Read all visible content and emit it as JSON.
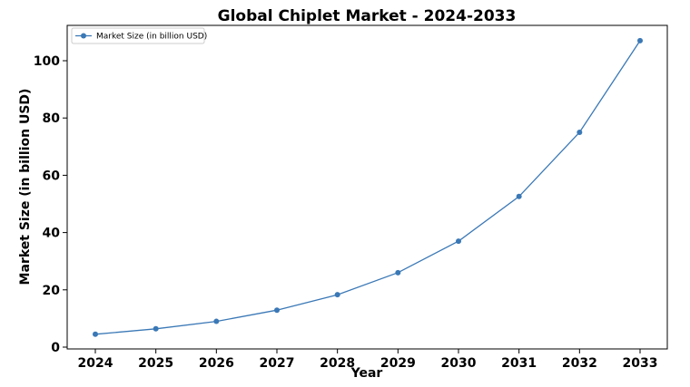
{
  "chart_data": {
    "type": "line",
    "title": "Global Chiplet Market - 2024-2033",
    "xlabel": "Year",
    "ylabel": "Market Size (in billion USD)",
    "x": [
      "2024",
      "2025",
      "2026",
      "2027",
      "2028",
      "2029",
      "2030",
      "2031",
      "2032",
      "2033"
    ],
    "series": [
      {
        "name": "Market Size (in billion USD)",
        "values": [
          4.5,
          6.4,
          9.0,
          12.9,
          18.3,
          26.0,
          37.0,
          52.6,
          75.0,
          107.0
        ]
      }
    ],
    "ylim": [
      0,
      112
    ],
    "yticks": [
      0,
      20,
      40,
      60,
      80,
      100
    ],
    "grid": false,
    "legend": "top-left",
    "line_color": "#3a78b6"
  }
}
